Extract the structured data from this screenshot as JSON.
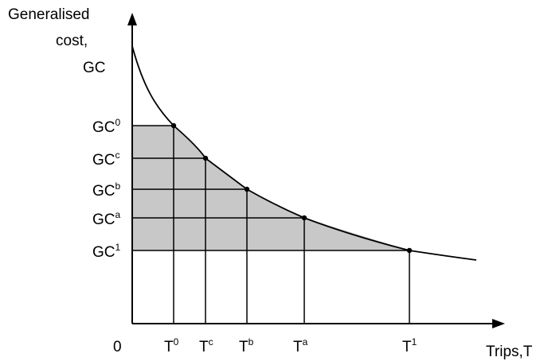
{
  "axes": {
    "y_title_lines": [
      "Generalised",
      "cost,",
      "GC"
    ],
    "x_title": "Trips,T",
    "origin_label": "0"
  },
  "y_levels": [
    {
      "base": "GC",
      "sup": "0"
    },
    {
      "base": "GC",
      "sup": "c"
    },
    {
      "base": "GC",
      "sup": "b"
    },
    {
      "base": "GC",
      "sup": "a"
    },
    {
      "base": "GC",
      "sup": "1"
    }
  ],
  "x_levels": [
    {
      "base": "T",
      "sup": "0"
    },
    {
      "base": "T",
      "sup": "c"
    },
    {
      "base": "T",
      "sup": "b"
    },
    {
      "base": "T",
      "sup": "a"
    },
    {
      "base": "T",
      "sup": "1"
    }
  ],
  "colors": {
    "line": "#000000",
    "shade": "#c8c8c8",
    "background": "#ffffff"
  }
}
